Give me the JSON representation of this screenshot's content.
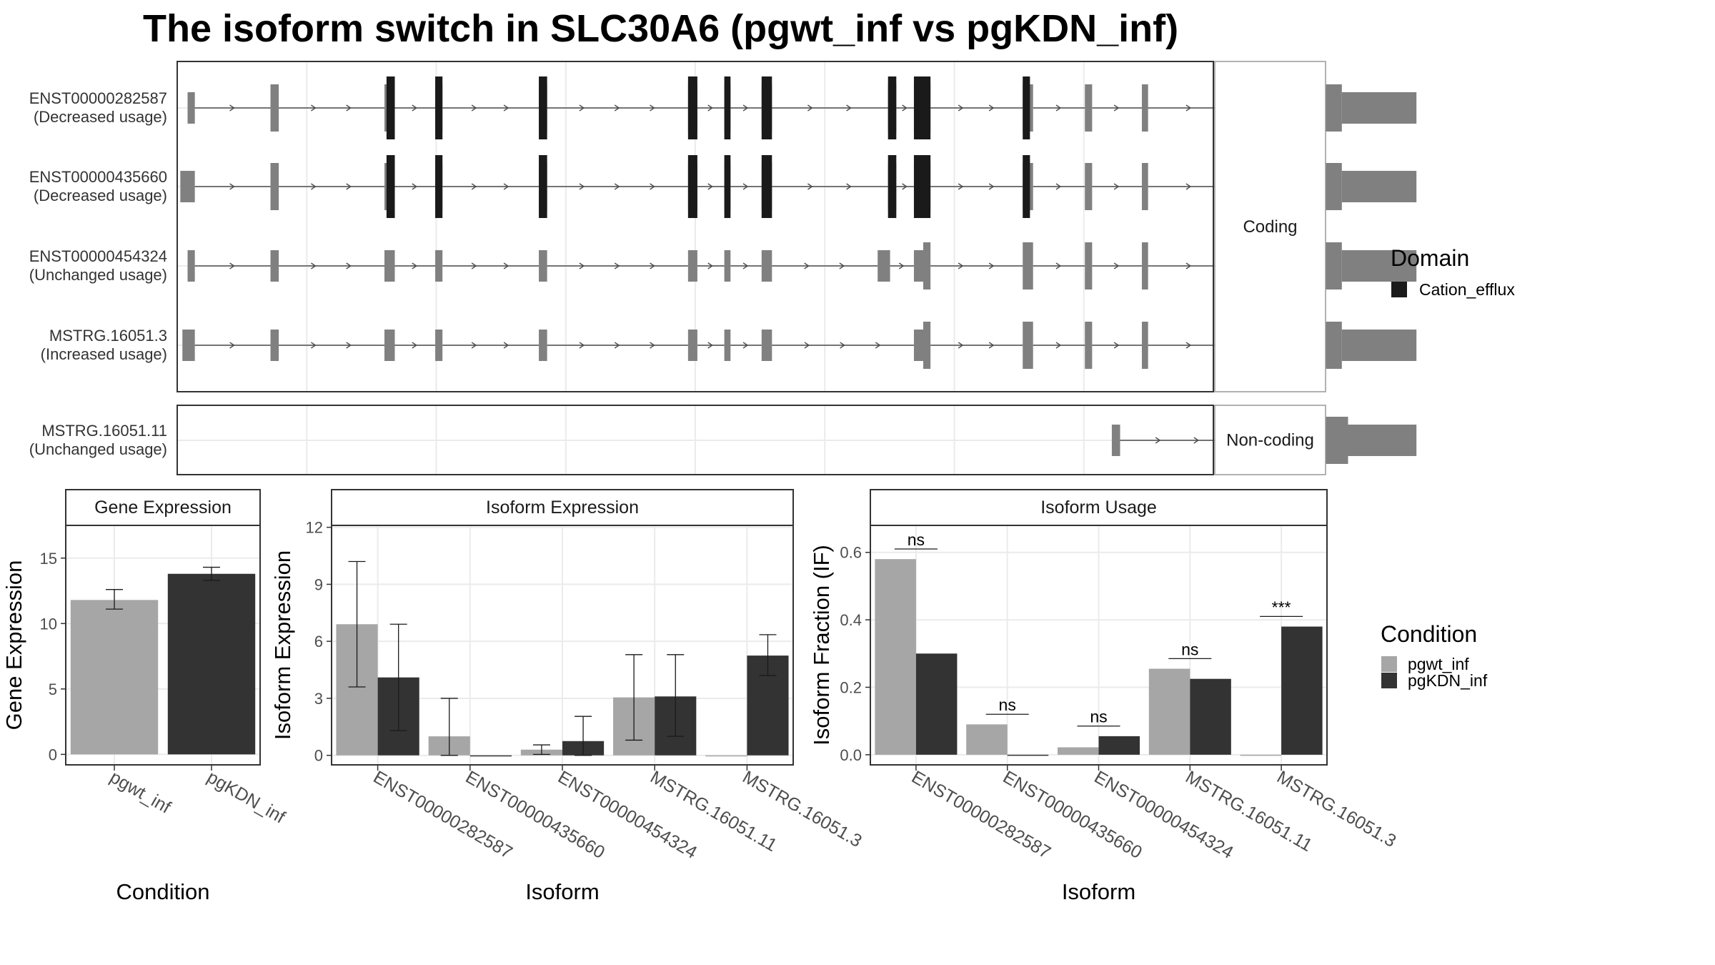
{
  "title": "The isoform switch in SLC30A6 (pgwt_inf vs pgKDN_inf)",
  "colors": {
    "domain": "#1a1a1a",
    "exon": "#808080",
    "intron": "#4d4d4d",
    "pgwt_inf": "#a6a6a6",
    "pgKDN_inf": "#333333",
    "grid": "#ebebeb",
    "panel_border": "#333333",
    "strip_border": "#999999"
  },
  "structure": {
    "x_range": [
      0,
      1000
    ],
    "groups": [
      {
        "label": "Coding",
        "transcripts": [
          {
            "id": "ENST00000282587",
            "usage": "(Decreased usage)",
            "exons": [
              [
                10,
                17,
                "s"
              ],
              [
                90,
                98,
                "t"
              ],
              [
                200,
                210,
                "t"
              ],
              [
                249,
                256,
                "t"
              ],
              [
                349,
                357,
                "t"
              ],
              [
                493,
                502,
                "t"
              ],
              [
                528,
                534,
                "t"
              ],
              [
                564,
                574,
                "t"
              ],
              [
                686,
                694,
                "t"
              ],
              [
                711,
                727,
                "t"
              ],
              [
                816,
                826,
                "t"
              ],
              [
                876,
                883,
                "t"
              ],
              [
                931,
                937,
                "t"
              ],
              [
                1095,
                1124,
                "t"
              ],
              [
                1124,
                1196,
                "s"
              ]
            ],
            "domains": [
              [
                202,
                210
              ],
              [
                249,
                256
              ],
              [
                349,
                357
              ],
              [
                493,
                502
              ],
              [
                528,
                534
              ],
              [
                564,
                574
              ],
              [
                686,
                694
              ],
              [
                711,
                727
              ],
              [
                816,
                823
              ]
            ]
          },
          {
            "id": "ENST00000435660",
            "usage": "(Decreased usage)",
            "exons": [
              [
                3,
                17,
                "s"
              ],
              [
                90,
                98,
                "t"
              ],
              [
                200,
                210,
                "t"
              ],
              [
                249,
                256,
                "t"
              ],
              [
                349,
                357,
                "t"
              ],
              [
                493,
                502,
                "t"
              ],
              [
                528,
                534,
                "t"
              ],
              [
                564,
                574,
                "t"
              ],
              [
                686,
                694,
                "t"
              ],
              [
                711,
                727,
                "t"
              ],
              [
                816,
                826,
                "t"
              ],
              [
                876,
                883,
                "t"
              ],
              [
                931,
                937,
                "t"
              ],
              [
                1095,
                1124,
                "t"
              ],
              [
                1124,
                1196,
                "s"
              ]
            ],
            "domains": [
              [
                202,
                210
              ],
              [
                249,
                256
              ],
              [
                349,
                357
              ],
              [
                493,
                502
              ],
              [
                528,
                534
              ],
              [
                564,
                574
              ],
              [
                686,
                694
              ],
              [
                711,
                727
              ],
              [
                816,
                823
              ]
            ]
          },
          {
            "id": "ENST00000454324",
            "usage": "(Unchanged usage)",
            "exons": [
              [
                10,
                17,
                "s"
              ],
              [
                90,
                98,
                "s"
              ],
              [
                200,
                210,
                "s"
              ],
              [
                249,
                256,
                "s"
              ],
              [
                349,
                357,
                "s"
              ],
              [
                493,
                502,
                "s"
              ],
              [
                528,
                534,
                "s"
              ],
              [
                564,
                574,
                "s"
              ],
              [
                676,
                688,
                "s"
              ],
              [
                711,
                720,
                "s"
              ],
              [
                720,
                727,
                "t"
              ],
              [
                816,
                826,
                "t"
              ],
              [
                876,
                883,
                "t"
              ],
              [
                931,
                937,
                "t"
              ],
              [
                1095,
                1124,
                "t"
              ],
              [
                1124,
                1196,
                "s"
              ]
            ],
            "domains": []
          },
          {
            "id": "MSTRG.16051.3",
            "usage": "(Increased usage)",
            "exons": [
              [
                5,
                17,
                "s"
              ],
              [
                90,
                98,
                "s"
              ],
              [
                200,
                210,
                "s"
              ],
              [
                249,
                256,
                "s"
              ],
              [
                349,
                357,
                "s"
              ],
              [
                493,
                502,
                "s"
              ],
              [
                528,
                534,
                "s"
              ],
              [
                564,
                574,
                "s"
              ],
              [
                711,
                720,
                "s"
              ],
              [
                720,
                727,
                "t"
              ],
              [
                816,
                826,
                "t"
              ],
              [
                876,
                883,
                "t"
              ],
              [
                931,
                937,
                "t"
              ],
              [
                1095,
                1124,
                "t"
              ],
              [
                1124,
                1196,
                "s"
              ]
            ],
            "domains": []
          }
        ]
      },
      {
        "label": "Non-coding",
        "transcripts": [
          {
            "id": "MSTRG.16051.11",
            "usage": "(Unchanged usage)",
            "exons": [
              [
                902,
                910,
                "s"
              ],
              [
                1095,
                1105,
                "s"
              ],
              [
                1105,
                1130,
                "t"
              ],
              [
                1130,
                1196,
                "s"
              ]
            ],
            "domains": []
          }
        ]
      }
    ],
    "legend_title": "Domain",
    "legend_items": [
      "Cation_efflux"
    ]
  },
  "chart_data": [
    {
      "type": "bar",
      "strip": "Gene Expression",
      "xlabel": "Condition",
      "ylabel": "Gene Expression",
      "ylim": [
        -0.8,
        17.5
      ],
      "yticks": [
        0,
        5,
        10,
        15
      ],
      "categories": [
        "pgwt_inf",
        "pgKDN_inf"
      ],
      "values": [
        11.8,
        13.8
      ],
      "errors": [
        [
          11.1,
          12.6
        ],
        [
          13.3,
          14.3
        ]
      ]
    },
    {
      "type": "bar",
      "strip": "Isoform Expression",
      "xlabel": "Isoform",
      "ylabel": "Isoform Expression",
      "ylim": [
        -0.5,
        12.1
      ],
      "yticks": [
        0,
        3,
        6,
        9,
        12
      ],
      "categories": [
        "ENST00000282587",
        "ENST00000435660",
        "ENST00000454324",
        "MSTRG.16051.11",
        "MSTRG.16051.3"
      ],
      "series": [
        {
          "name": "pgwt_inf",
          "values": [
            6.9,
            1.0,
            0.3,
            3.05,
            0.0
          ],
          "errors": [
            [
              3.6,
              10.2
            ],
            [
              0.0,
              3.0
            ],
            [
              0.05,
              0.55
            ],
            [
              0.8,
              5.3
            ],
            [
              0.0,
              0.0
            ]
          ]
        },
        {
          "name": "pgKDN_inf",
          "values": [
            4.1,
            0.0,
            0.75,
            3.1,
            5.25
          ],
          "errors": [
            [
              1.3,
              6.9
            ],
            [
              0.0,
              0.0
            ],
            [
              0.0,
              2.05
            ],
            [
              1.0,
              5.3
            ],
            [
              4.2,
              6.35
            ]
          ]
        }
      ]
    },
    {
      "type": "bar",
      "strip": "Isoform Usage",
      "xlabel": "Isoform",
      "ylabel": "Isoform Fraction (IF)",
      "ylim": [
        -0.03,
        0.68
      ],
      "yticks": [
        0.0,
        0.2,
        0.4,
        0.6
      ],
      "ytick_labels": [
        "0.0",
        "0.2",
        "0.4",
        "0.6"
      ],
      "categories": [
        "ENST00000282587",
        "ENST00000435660",
        "ENST00000454324",
        "MSTRG.16051.11",
        "MSTRG.16051.3"
      ],
      "series": [
        {
          "name": "pgwt_inf",
          "values": [
            0.58,
            0.09,
            0.022,
            0.255,
            0.0
          ]
        },
        {
          "name": "pgKDN_inf",
          "values": [
            0.3,
            0.0,
            0.055,
            0.225,
            0.38
          ]
        }
      ],
      "significance": [
        {
          "label": "ns",
          "y": 0.61
        },
        {
          "label": "ns",
          "y": 0.12
        },
        {
          "label": "ns",
          "y": 0.085
        },
        {
          "label": "ns",
          "y": 0.285
        },
        {
          "label": "***",
          "y": 0.41
        }
      ]
    }
  ],
  "condition_legend": {
    "title": "Condition",
    "items": [
      "pgwt_inf",
      "pgKDN_inf"
    ]
  }
}
